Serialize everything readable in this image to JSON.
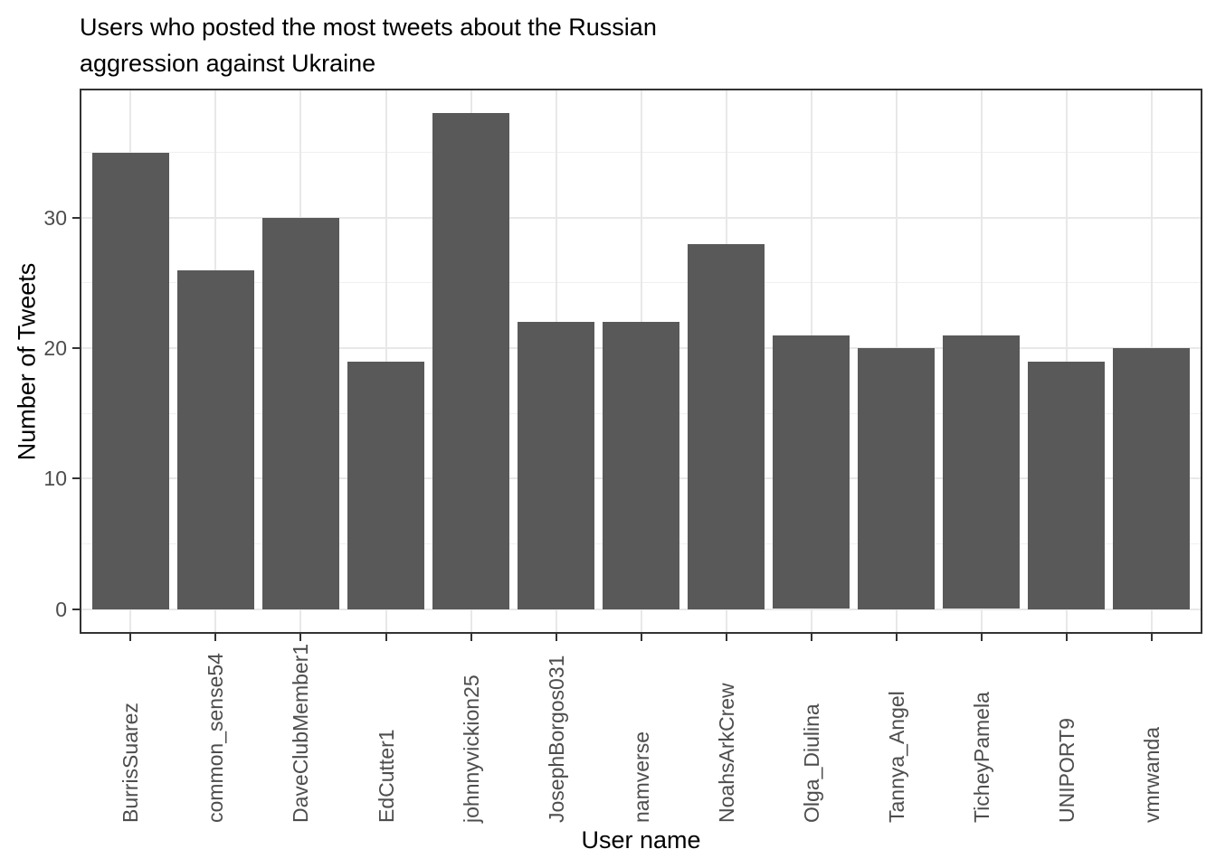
{
  "chart_data": {
    "type": "bar",
    "title": "Users who posted the most tweets about the Russian aggression against Ukraine",
    "title_lines": [
      "Users who posted the most tweets about the Russian",
      "aggression against Ukraine"
    ],
    "xlabel": "User name",
    "ylabel": "Number of Tweets",
    "categories": [
      "BurrisSuarez",
      "common_sense54",
      "DaveClubMember1",
      "EdCutter1",
      "johnnyvickion25",
      "JosephBorgos031",
      "namverse",
      "NoahsArkCrew",
      "Olga_Diulina",
      "Tannya_Angel",
      "TicheyPamela",
      "UNIPORT9",
      "vmrwanda"
    ],
    "values": [
      35,
      26,
      30,
      19,
      38,
      22,
      22,
      28,
      21,
      20,
      21,
      19,
      20
    ],
    "ylim": [
      0,
      38
    ],
    "y_expand_mult": 0.05,
    "x_expand_add": 0.6,
    "bar_rel_width": 0.9,
    "yticks_major": [
      0,
      10,
      20,
      30
    ],
    "yticks_minor": [
      5,
      15,
      25,
      35
    ],
    "grid": "horizontal major+minor, vertical major at category centers",
    "legend_position": "none",
    "colors": {
      "bar_fill": "#595959",
      "panel_border": "#333333",
      "grid_major": "#E8E8E8",
      "grid_minor": "#F0F0F0",
      "axis_tick": "#333333",
      "tick_label": "#4D4D4D",
      "title_text": "#000000",
      "background": "#FFFFFF"
    }
  }
}
